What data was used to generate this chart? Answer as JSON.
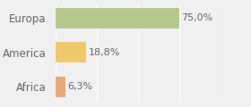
{
  "categories": [
    "Africa",
    "America",
    "Europa"
  ],
  "values": [
    6.3,
    18.8,
    75.0
  ],
  "labels": [
    "6,3%",
    "18,8%",
    "75,0%"
  ],
  "bar_colors": [
    "#e8a87c",
    "#f0c96e",
    "#b5c98e"
  ],
  "background_color": "#f0f0f0",
  "xlim": [
    0,
    100
  ],
  "label_fontsize": 8,
  "tick_fontsize": 8.5
}
